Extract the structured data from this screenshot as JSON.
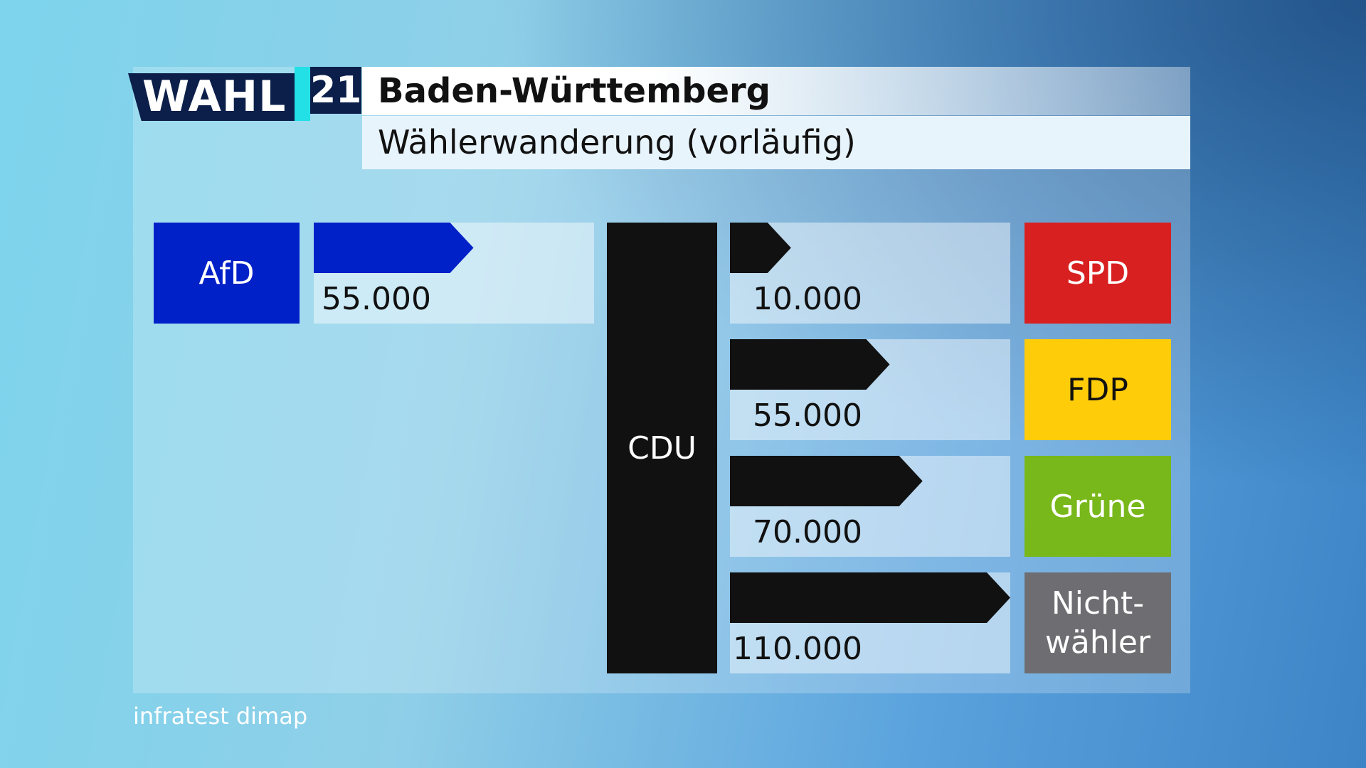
{
  "chart_data": {
    "type": "flow",
    "logo": {
      "word": "WAHL",
      "number": "21"
    },
    "title": "Baden-Württemberg",
    "subtitle": "Wählerwanderung (vorläufig)",
    "center": {
      "name": "CDU",
      "color": "#111111"
    },
    "inflows": {
      "categories": [
        "AfD"
      ],
      "colors": [
        "#0020c8"
      ],
      "arrow_color": "#0020c8",
      "values": [
        55000
      ],
      "value_labels": [
        "55.000"
      ]
    },
    "outflows": {
      "categories": [
        "SPD",
        "FDP",
        "Grüne",
        "Nicht-wähler"
      ],
      "colors": [
        "#d92020",
        "#ffcc0a",
        "#78b81a",
        "#6e6e72"
      ],
      "arrow_color": "#111111",
      "values": [
        10000,
        55000,
        70000,
        110000
      ],
      "value_labels": [
        "10.000",
        "55.000",
        "70.000",
        "110.000"
      ]
    },
    "source": "infratest dimap"
  }
}
